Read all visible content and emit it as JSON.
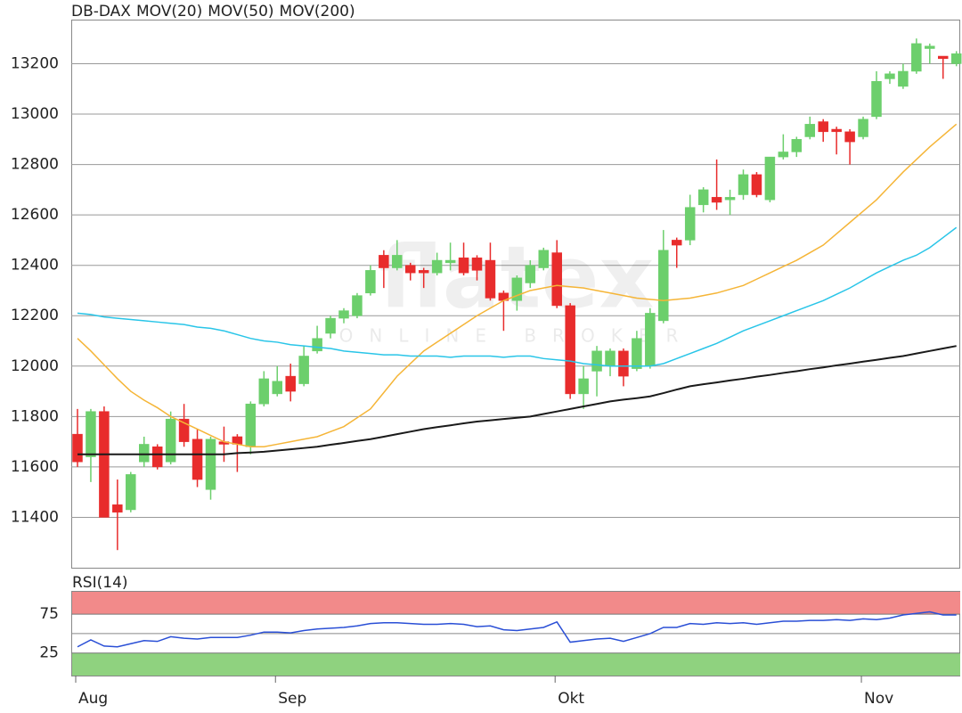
{
  "chart_data": [
    {
      "type": "candlestick",
      "name": "DB-DAX",
      "color": "#e8603a",
      "up_color": "#6ccf6c",
      "down_color": "#e82c2c",
      "watermark": "flatex",
      "watermark_subtitle": "ONLINE BROKER",
      "categories": [
        "Aug",
        null,
        null,
        null,
        null,
        null,
        null,
        null,
        null,
        null,
        null,
        null,
        null,
        null,
        null,
        "Sep",
        null,
        null,
        null,
        null,
        null,
        null,
        null,
        null,
        null,
        null,
        null,
        null,
        null,
        null,
        null,
        null,
        null,
        null,
        null,
        null,
        "Okt",
        null,
        null,
        null,
        null,
        null,
        null,
        null,
        null,
        null,
        null,
        null,
        null,
        null,
        null,
        null,
        null,
        null,
        null,
        null,
        null,
        null,
        null,
        "Nov",
        null,
        null,
        null,
        null,
        null,
        null,
        null
      ],
      "open": [
        11730,
        11640,
        11820,
        11450,
        11430,
        11620,
        11680,
        11620,
        11790,
        11710,
        11510,
        11700,
        11720,
        11680,
        11850,
        11890,
        11960,
        11930,
        12060,
        12130,
        12190,
        12200,
        12290,
        12440,
        12390,
        12400,
        12380,
        12370,
        12410,
        12430,
        12430,
        12420,
        12290,
        12260,
        12330,
        12390,
        12450,
        12240,
        11890,
        11980,
        12000,
        12060,
        11990,
        12000,
        12180,
        12500,
        12500,
        12640,
        12670,
        12660,
        12680,
        12760,
        12660,
        12830,
        12850,
        12910,
        12970,
        12940,
        12930,
        12910,
        12990,
        13140,
        13110,
        13170,
        13260,
        13230,
        13200
      ],
      "high": [
        11830,
        11830,
        11840,
        11550,
        11580,
        11720,
        11690,
        11820,
        11850,
        11750,
        11720,
        11760,
        11730,
        11860,
        11980,
        12000,
        12010,
        12080,
        12160,
        12200,
        12230,
        12290,
        12400,
        12460,
        12500,
        12410,
        12390,
        12450,
        12490,
        12490,
        12440,
        12490,
        12300,
        12360,
        12420,
        12470,
        12500,
        12250,
        12000,
        12080,
        12070,
        12070,
        12140,
        12230,
        12540,
        12510,
        12680,
        12710,
        12820,
        12700,
        12780,
        12770,
        12830,
        12920,
        12910,
        12990,
        12980,
        12950,
        12940,
        12990,
        13170,
        13170,
        13200,
        13300,
        13280,
        13230,
        13250
      ],
      "low": [
        11600,
        11540,
        11400,
        11270,
        11420,
        11600,
        11590,
        11610,
        11680,
        11520,
        11470,
        11620,
        11580,
        11650,
        11840,
        11880,
        11860,
        11920,
        12050,
        12110,
        12170,
        12190,
        12280,
        12310,
        12380,
        12340,
        12310,
        12360,
        12380,
        12360,
        12340,
        12260,
        12140,
        12220,
        12310,
        12380,
        12230,
        11870,
        11830,
        11880,
        11960,
        11920,
        11980,
        11990,
        12170,
        12390,
        12480,
        12610,
        12620,
        12600,
        12660,
        12670,
        12650,
        12820,
        12830,
        12900,
        12890,
        12840,
        12800,
        12900,
        12980,
        13120,
        13100,
        13160,
        13200,
        13140,
        13190
      ],
      "close": [
        11620,
        11820,
        11400,
        11420,
        11570,
        11690,
        11600,
        11790,
        11700,
        11550,
        11710,
        11690,
        11690,
        11850,
        11950,
        11940,
        11900,
        12040,
        12110,
        12190,
        12220,
        12280,
        12380,
        12390,
        12440,
        12370,
        12370,
        12420,
        12420,
        12370,
        12380,
        12270,
        12260,
        12350,
        12400,
        12460,
        12240,
        11890,
        11950,
        12060,
        12060,
        11960,
        12110,
        12210,
        12460,
        12480,
        12630,
        12700,
        12650,
        12670,
        12760,
        12680,
        12830,
        12850,
        12900,
        12960,
        12930,
        12930,
        12890,
        12980,
        13130,
        13160,
        13170,
        13280,
        13270,
        13220,
        13240
      ],
      "series": [
        {
          "name": "MOV(20)",
          "color": "#f5b537",
          "values": [
            12110,
            12060,
            12005,
            11950,
            11900,
            11865,
            11835,
            11800,
            11775,
            11750,
            11725,
            11700,
            11690,
            11680,
            11680,
            11690,
            11700,
            11710,
            11720,
            11740,
            11760,
            11795,
            11830,
            11895,
            11960,
            12010,
            12060,
            12095,
            12130,
            12165,
            12200,
            12230,
            12260,
            12280,
            12300,
            12310,
            12320,
            12315,
            12310,
            12300,
            12290,
            12280,
            12270,
            12265,
            12260,
            12265,
            12270,
            12280,
            12290,
            12305,
            12320,
            12345,
            12370,
            12395,
            12420,
            12450,
            12480,
            12525,
            12570,
            12615,
            12660,
            12715,
            12770,
            12820,
            12870,
            12915,
            12960
          ]
        },
        {
          "name": "MOV(50)",
          "color": "#29c5e8",
          "values": [
            12210,
            12205,
            12195,
            12190,
            12185,
            12180,
            12175,
            12170,
            12165,
            12155,
            12150,
            12140,
            12125,
            12110,
            12100,
            12095,
            12085,
            12080,
            12075,
            12070,
            12060,
            12055,
            12050,
            12045,
            12045,
            12040,
            12040,
            12040,
            12035,
            12040,
            12040,
            12040,
            12035,
            12040,
            12040,
            12030,
            12025,
            12020,
            12010,
            12005,
            12000,
            12000,
            12000,
            12000,
            12010,
            12030,
            12050,
            12070,
            12090,
            12115,
            12140,
            12160,
            12180,
            12200,
            12220,
            12240,
            12260,
            12285,
            12310,
            12340,
            12370,
            12395,
            12420,
            12440,
            12470,
            12510,
            12550
          ]
        },
        {
          "name": "MOV(200)",
          "color": "#1a1a1a",
          "values": [
            11650,
            11650,
            11650,
            11650,
            11650,
            11650,
            11650,
            11650,
            11650,
            11650,
            11650,
            11650,
            11655,
            11657,
            11660,
            11665,
            11670,
            11675,
            11680,
            11688,
            11695,
            11703,
            11710,
            11720,
            11730,
            11740,
            11750,
            11758,
            11765,
            11773,
            11780,
            11785,
            11790,
            11795,
            11800,
            11810,
            11820,
            11830,
            11840,
            11850,
            11860,
            11867,
            11873,
            11880,
            11893,
            11907,
            11920,
            11928,
            11935,
            11943,
            11950,
            11958,
            11965,
            11973,
            11980,
            11988,
            11995,
            12003,
            12010,
            12018,
            12025,
            12033,
            12040,
            12050,
            12060,
            12070,
            12080
          ]
        }
      ],
      "ylim": [
        11200,
        13375
      ],
      "yticks": [
        11400,
        11600,
        11800,
        12000,
        12200,
        12400,
        12600,
        12800,
        13000,
        13200
      ],
      "grid": true
    },
    {
      "type": "line",
      "title": "RSI(14)",
      "color": "#2a4fd6",
      "values": [
        33,
        42,
        34,
        33,
        37,
        41,
        40,
        46,
        44,
        43,
        45,
        45,
        45,
        48,
        52,
        52,
        51,
        54,
        56,
        57,
        58,
        60,
        63,
        64,
        64,
        63,
        62,
        62,
        63,
        62,
        59,
        60,
        55,
        54,
        56,
        58,
        65,
        39,
        41,
        43,
        44,
        40,
        45,
        50,
        58,
        58,
        63,
        62,
        64,
        63,
        64,
        62,
        64,
        66,
        66,
        67,
        67,
        68,
        67,
        69,
        68,
        70,
        74,
        76,
        78,
        74,
        74
      ],
      "ylim": [
        -4,
        105
      ],
      "yticks": [
        25,
        75
      ],
      "midline": 50,
      "overbought": 75,
      "overbought_color": "#f28a8a",
      "oversold": 25,
      "oversold_color": "#8fd27f",
      "grid": true
    }
  ]
}
